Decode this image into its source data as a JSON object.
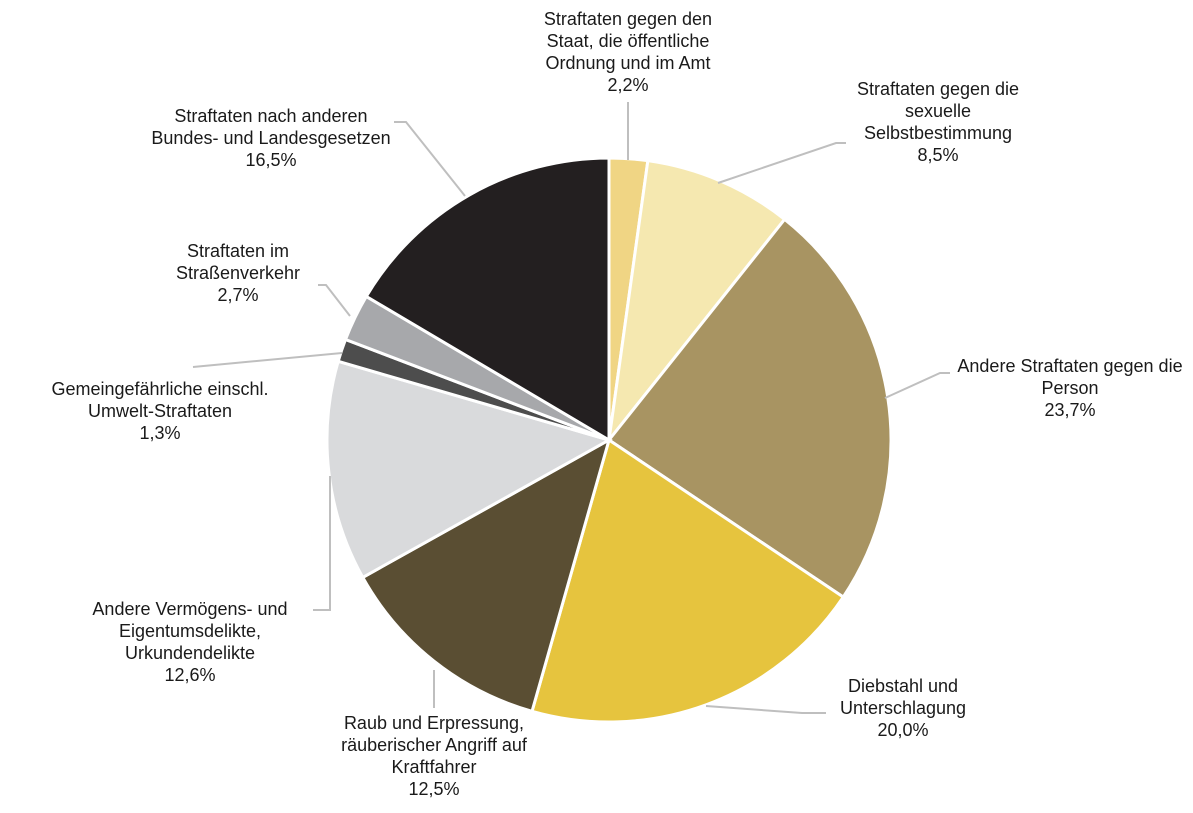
{
  "chart_data": {
    "type": "pie",
    "categories": [
      "Straftaten gegen den Staat, die öffentliche Ordnung und im Amt",
      "Straftaten gegen die sexuelle Selbstbestimmung",
      "Andere Straftaten gegen die Person",
      "Diebstahl und Unterschlagung",
      "Raub und Erpressung, räuberischer Angriff auf Kraftfahrer",
      "Andere Vermögens- und Eigentumsdelikte, Urkundendelikte",
      "Gemeingefährliche einschl. Umwelt-Straftaten",
      "Straftaten im Straßenverkehr",
      "Straftaten nach anderen Bundes- und Landesgesetzen"
    ],
    "values": [
      2.2,
      8.5,
      23.7,
      20.0,
      12.5,
      12.6,
      1.3,
      2.7,
      16.5
    ],
    "value_labels": [
      "2,2%",
      "8,5%",
      "23,7%",
      "20,0%",
      "12,5%",
      "12,6%",
      "1,3%",
      "2,7%",
      "16,5%"
    ],
    "colors": [
      "#f0d584",
      "#f5e8b0",
      "#a89462",
      "#e6c43e",
      "#5a4e33",
      "#d9dadc",
      "#4d4d4d",
      "#a7a8ab",
      "#231f20"
    ]
  }
}
